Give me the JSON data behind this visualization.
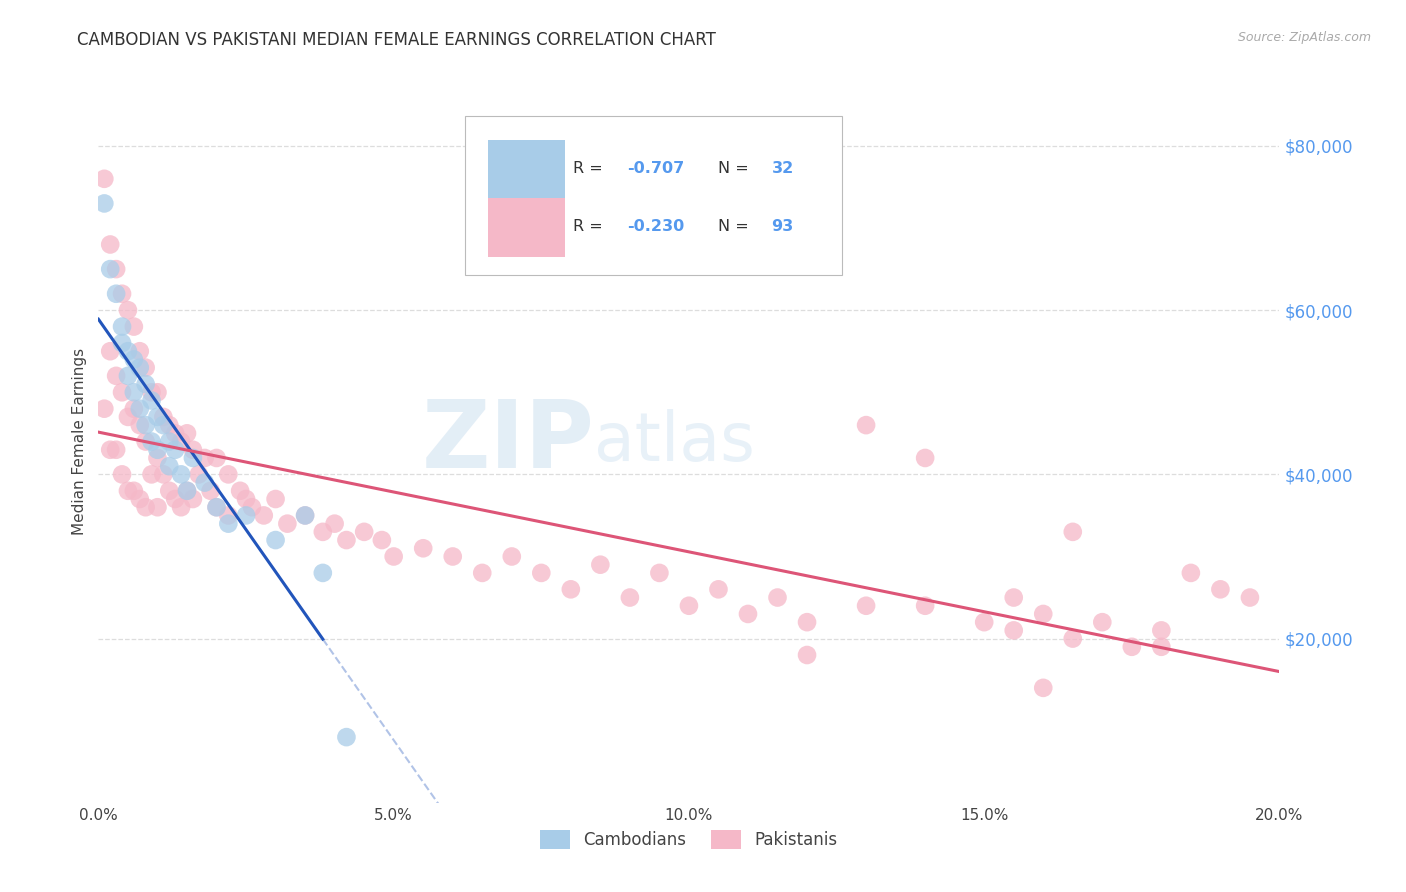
{
  "title": "CAMBODIAN VS PAKISTANI MEDIAN FEMALE EARNINGS CORRELATION CHART",
  "source": "Source: ZipAtlas.com",
  "xlabel_ticks": [
    "0.0%",
    "5.0%",
    "10.0%",
    "15.0%",
    "20.0%"
  ],
  "xlabel_tick_vals": [
    0.0,
    0.05,
    0.1,
    0.15,
    0.2
  ],
  "ylabel": "Median Female Earnings",
  "ylabel_right_ticks": [
    "$80,000",
    "$60,000",
    "$40,000",
    "$20,000"
  ],
  "ylabel_right_vals": [
    80000,
    60000,
    40000,
    20000
  ],
  "ylim": [
    0,
    88000
  ],
  "xlim": [
    0.0,
    0.2
  ],
  "r_cambodian": "-0.707",
  "n_cambodian": "32",
  "r_pakistani": "-0.230",
  "n_pakistani": "93",
  "legend_label_cambodian": "Cambodians",
  "legend_label_pakistani": "Pakistanis",
  "color_cambodian": "#a8cce8",
  "color_pakistani": "#f5b8c8",
  "line_color_cambodian": "#2255bb",
  "line_color_pakistani": "#dd5577",
  "watermark_zip": "ZIP",
  "watermark_atlas": "atlas",
  "cambodian_x": [
    0.001,
    0.002,
    0.003,
    0.004,
    0.004,
    0.005,
    0.005,
    0.006,
    0.006,
    0.007,
    0.007,
    0.008,
    0.008,
    0.009,
    0.009,
    0.01,
    0.01,
    0.011,
    0.012,
    0.012,
    0.013,
    0.014,
    0.015,
    0.016,
    0.018,
    0.02,
    0.022,
    0.025,
    0.03,
    0.035,
    0.038,
    0.042
  ],
  "cambodian_y": [
    73000,
    65000,
    62000,
    58000,
    56000,
    55000,
    52000,
    54000,
    50000,
    53000,
    48000,
    51000,
    46000,
    49000,
    44000,
    47000,
    43000,
    46000,
    44000,
    41000,
    43000,
    40000,
    38000,
    42000,
    39000,
    36000,
    34000,
    35000,
    32000,
    35000,
    28000,
    8000
  ],
  "pakistani_x": [
    0.001,
    0.001,
    0.002,
    0.002,
    0.002,
    0.003,
    0.003,
    0.003,
    0.004,
    0.004,
    0.004,
    0.005,
    0.005,
    0.005,
    0.006,
    0.006,
    0.006,
    0.007,
    0.007,
    0.007,
    0.008,
    0.008,
    0.008,
    0.009,
    0.009,
    0.01,
    0.01,
    0.01,
    0.011,
    0.011,
    0.012,
    0.012,
    0.013,
    0.013,
    0.014,
    0.014,
    0.015,
    0.015,
    0.016,
    0.016,
    0.017,
    0.018,
    0.019,
    0.02,
    0.02,
    0.022,
    0.022,
    0.024,
    0.025,
    0.026,
    0.028,
    0.03,
    0.032,
    0.035,
    0.038,
    0.04,
    0.042,
    0.045,
    0.048,
    0.05,
    0.055,
    0.06,
    0.065,
    0.07,
    0.075,
    0.08,
    0.085,
    0.09,
    0.095,
    0.1,
    0.105,
    0.11,
    0.115,
    0.12,
    0.13,
    0.14,
    0.15,
    0.155,
    0.16,
    0.165,
    0.17,
    0.175,
    0.18,
    0.185,
    0.19,
    0.195,
    0.12,
    0.13,
    0.14,
    0.155,
    0.16,
    0.165,
    0.18
  ],
  "pakistani_y": [
    76000,
    48000,
    68000,
    55000,
    43000,
    65000,
    52000,
    43000,
    62000,
    50000,
    40000,
    60000,
    47000,
    38000,
    58000,
    48000,
    38000,
    55000,
    46000,
    37000,
    53000,
    44000,
    36000,
    50000,
    40000,
    50000,
    42000,
    36000,
    47000,
    40000,
    46000,
    38000,
    45000,
    37000,
    44000,
    36000,
    45000,
    38000,
    43000,
    37000,
    40000,
    42000,
    38000,
    42000,
    36000,
    40000,
    35000,
    38000,
    37000,
    36000,
    35000,
    37000,
    34000,
    35000,
    33000,
    34000,
    32000,
    33000,
    32000,
    30000,
    31000,
    30000,
    28000,
    30000,
    28000,
    26000,
    29000,
    25000,
    28000,
    24000,
    26000,
    23000,
    25000,
    22000,
    24000,
    24000,
    22000,
    21000,
    23000,
    20000,
    22000,
    19000,
    21000,
    28000,
    26000,
    25000,
    18000,
    46000,
    42000,
    25000,
    14000,
    33000,
    19000
  ]
}
